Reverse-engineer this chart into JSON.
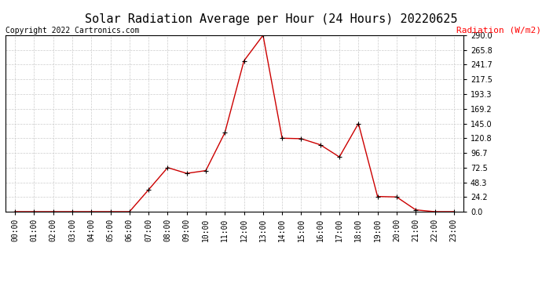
{
  "title": "Solar Radiation Average per Hour (24 Hours) 20220625",
  "copyright_text": "Copyright 2022 Cartronics.com",
  "ylabel": "Radiation (W/m2)",
  "ylabel_color": "#ff0000",
  "line_color": "#cc0000",
  "marker_color": "#000000",
  "background_color": "#ffffff",
  "grid_color": "#cccccc",
  "hours": [
    "00:00",
    "01:00",
    "02:00",
    "03:00",
    "04:00",
    "05:00",
    "06:00",
    "07:00",
    "08:00",
    "09:00",
    "10:00",
    "11:00",
    "12:00",
    "13:00",
    "14:00",
    "15:00",
    "16:00",
    "17:00",
    "18:00",
    "19:00",
    "20:00",
    "21:00",
    "22:00",
    "23:00"
  ],
  "values": [
    0.0,
    0.0,
    0.0,
    0.0,
    0.0,
    0.0,
    0.0,
    36.0,
    72.5,
    63.0,
    67.5,
    130.0,
    248.0,
    290.0,
    120.8,
    120.0,
    110.0,
    90.0,
    145.0,
    25.0,
    24.2,
    3.0,
    0.0,
    0.0
  ],
  "ylim": [
    0.0,
    290.0
  ],
  "yticks": [
    0.0,
    24.2,
    48.3,
    72.5,
    96.7,
    120.8,
    145.0,
    169.2,
    193.3,
    217.5,
    241.7,
    265.8,
    290.0
  ],
  "title_fontsize": 11,
  "copyright_fontsize": 7,
  "ylabel_fontsize": 8,
  "tick_fontsize": 7
}
